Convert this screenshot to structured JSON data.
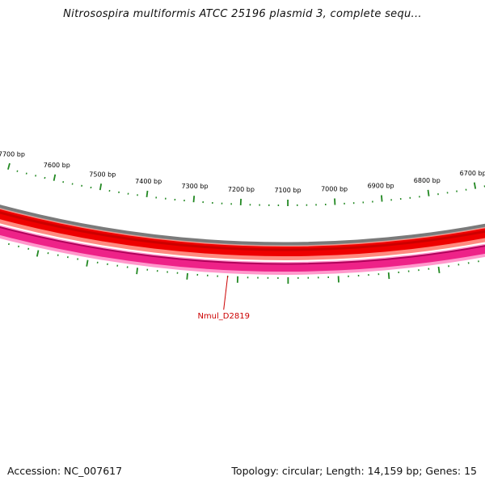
{
  "title": "Nitrosospira multiformis ATCC 25196 plasmid 3, complete sequ...",
  "footer": {
    "accession": "Accession: NC_007617",
    "summary": "Topology: circular; Length: 14,159 bp; Genes: 15"
  },
  "colors": {
    "backbone": "#7a7a7a",
    "forward_strand": "#ee0000",
    "reverse_strand": "#ee2288",
    "ticks": "#228822",
    "gene_label": "#cc0000"
  },
  "chart_data": {
    "type": "circular-map",
    "sequence_length_bp": 14159,
    "visible_range_bp": [
      6600,
      7800
    ],
    "tick_labels": [
      {
        "bp": 7700,
        "label": "7700 bp"
      },
      {
        "bp": 7600,
        "label": "7600 bp"
      },
      {
        "bp": 7500,
        "label": "7500 bp"
      },
      {
        "bp": 7400,
        "label": "7400 bp"
      },
      {
        "bp": 7300,
        "label": "7300 bp"
      },
      {
        "bp": 7200,
        "label": "7200 bp"
      },
      {
        "bp": 7100,
        "label": "7100 bp"
      },
      {
        "bp": 7000,
        "label": "7000 bp"
      },
      {
        "bp": 6900,
        "label": "6900 bp"
      },
      {
        "bp": 6800,
        "label": "6800 bp"
      },
      {
        "bp": 6700,
        "label": "6700 bp"
      }
    ],
    "gene_labels": [
      {
        "name": "Nmul_D2819",
        "bp": 7220
      }
    ]
  }
}
